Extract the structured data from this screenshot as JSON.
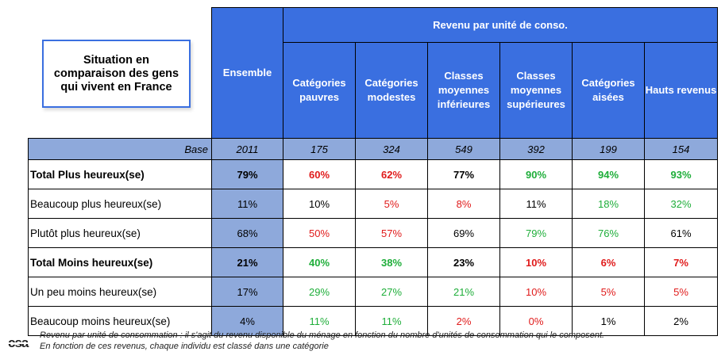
{
  "title_box": "Situation en comparaison des gens qui vivent en France",
  "header": {
    "ensemble": "Ensemble",
    "super_header": "Revenu par unité de conso.",
    "columns": [
      "Catégories pauvres",
      "Catégories modestes",
      "Classes moyennes inférieures",
      "Classes moyennes supérieures",
      "Catégories aisées",
      "Hauts revenus"
    ]
  },
  "base": {
    "label": "Base",
    "values": [
      "2011",
      "175",
      "324",
      "549",
      "392",
      "199",
      "154"
    ]
  },
  "rows": [
    {
      "label": "Total Plus heureux(se)",
      "bold": true,
      "values": [
        "79%",
        "60%",
        "62%",
        "77%",
        "90%",
        "94%",
        "93%"
      ],
      "colors": [
        "black",
        "red",
        "red",
        "black",
        "green",
        "green",
        "green"
      ]
    },
    {
      "label": "Beaucoup plus heureux(se)",
      "bold": false,
      "values": [
        "11%",
        "10%",
        "5%",
        "8%",
        "11%",
        "18%",
        "32%"
      ],
      "colors": [
        "black",
        "black",
        "red",
        "red",
        "black",
        "green",
        "green"
      ]
    },
    {
      "label": "Plutôt plus heureux(se)",
      "bold": false,
      "values": [
        "68%",
        "50%",
        "57%",
        "69%",
        "79%",
        "76%",
        "61%"
      ],
      "colors": [
        "black",
        "red",
        "red",
        "black",
        "green",
        "green",
        "black"
      ]
    },
    {
      "label": "Total Moins heureux(se)",
      "bold": true,
      "values": [
        "21%",
        "40%",
        "38%",
        "23%",
        "10%",
        "6%",
        "7%"
      ],
      "colors": [
        "black",
        "green",
        "green",
        "black",
        "red",
        "red",
        "red"
      ]
    },
    {
      "label": "Un peu moins heureux(se)",
      "bold": false,
      "values": [
        "17%",
        "29%",
        "27%",
        "21%",
        "10%",
        "5%",
        "5%"
      ],
      "colors": [
        "black",
        "green",
        "green",
        "green",
        "red",
        "red",
        "red"
      ]
    },
    {
      "label": "Beaucoup moins heureux(se)",
      "bold": false,
      "values": [
        "4%",
        "11%",
        "11%",
        "2%",
        "0%",
        "1%",
        "2%"
      ],
      "colors": [
        "black",
        "green",
        "green",
        "red",
        "red",
        "black",
        "black"
      ]
    }
  ],
  "footer": {
    "logo": "csa",
    "line1": "Revenu par unité de consommation : il s'agit du revenu disponible du ménage en fonction du nombre d'unités de consommation qui le composent.",
    "line2": "En fonction de ces revenus, chaque individu est classé dans une catégorie"
  },
  "colors": {
    "header_blue": "#3a6fe0",
    "light_blue": "#8ea9db",
    "positive_green": "#1fae3a",
    "negative_red": "#e01b1b"
  }
}
